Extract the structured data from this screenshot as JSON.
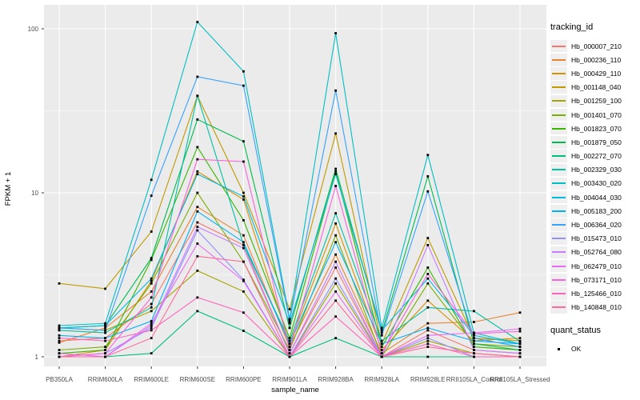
{
  "chart_data": {
    "type": "line",
    "title": "",
    "xlabel": "sample_name",
    "ylabel": "FPKM + 1",
    "y_scale": "log10",
    "ylim": [
      0.85,
      140
    ],
    "yticks": [
      {
        "value": 1,
        "label": "1"
      },
      {
        "value": 10,
        "label": "10"
      },
      {
        "value": 100,
        "label": "100"
      }
    ],
    "grid": "on",
    "panel_color": "#EBEBEB",
    "grid_color": "#FFFFFF",
    "point_color": "#000000",
    "point_shape": "square",
    "legend_position": "right",
    "categories": [
      "PB350LA",
      "RRIM600LA",
      "RRIM600LE",
      "RRIM600SE",
      "RRIM600PE",
      "RRIM901LA",
      "RRIM928BA",
      "RRIM928LA",
      "RRIM928LE",
      "RRII105LA_Control",
      "RRII105LA_Stressed"
    ],
    "series": [
      {
        "name": "Hb_000007_210",
        "color": "#F8766D",
        "values": [
          1.25,
          1.3,
          2.1,
          6.6,
          4.8,
          1.05,
          3.5,
          1.0,
          1.45,
          1.1,
          1.05
        ]
      },
      {
        "name": "Hb_000236_110",
        "color": "#EA8331",
        "values": [
          1.22,
          1.5,
          2.5,
          8.2,
          5.5,
          1.15,
          4.2,
          1.05,
          1.6,
          1.63,
          1.86
        ]
      },
      {
        "name": "Hb_000429_110",
        "color": "#D89000",
        "values": [
          1.0,
          1.1,
          2.9,
          13.5,
          9.1,
          1.2,
          6.5,
          1.1,
          2.2,
          1.25,
          1.3
        ]
      },
      {
        "name": "Hb_001148_040",
        "color": "#C09B00",
        "values": [
          2.8,
          2.6,
          5.8,
          39,
          10,
          1.95,
          23,
          1.2,
          5.3,
          1.3,
          1.25
        ]
      },
      {
        "name": "Hb_001259_100",
        "color": "#A3A500",
        "values": [
          1.5,
          1.45,
          1.9,
          3.35,
          2.5,
          1.0,
          2.8,
          1.0,
          1.25,
          1.05,
          1.0
        ]
      },
      {
        "name": "Hb_001401_070",
        "color": "#7CAE00",
        "values": [
          1.1,
          1.15,
          2.8,
          10,
          3.8,
          1.1,
          5.5,
          1.0,
          2.8,
          1.2,
          1.15
        ]
      },
      {
        "name": "Hb_001823_070",
        "color": "#39B600",
        "values": [
          1.05,
          1.1,
          3.9,
          19,
          6.8,
          1.3,
          13.5,
          1.15,
          3.5,
          1.15,
          1.1
        ]
      },
      {
        "name": "Hb_001879_050",
        "color": "#00BB4E",
        "values": [
          1.5,
          1.55,
          4.0,
          28,
          20.6,
          1.5,
          14,
          1.4,
          12.6,
          1.2,
          1.1
        ]
      },
      {
        "name": "Hb_002272_070",
        "color": "#00BF7D",
        "values": [
          1.0,
          1.0,
          1.05,
          1.9,
          1.44,
          1.0,
          1.3,
          1.0,
          1.0,
          1.0,
          1.0
        ]
      },
      {
        "name": "Hb_002329_030",
        "color": "#00C1A3",
        "values": [
          1.45,
          1.4,
          2.0,
          39,
          4.8,
          1.25,
          7.5,
          1.25,
          2.0,
          1.9,
          1.24
        ]
      },
      {
        "name": "Hb_003430_020",
        "color": "#00BFC4",
        "values": [
          1.55,
          1.6,
          12,
          110,
          55,
          1.7,
          94,
          1.5,
          17,
          1.4,
          1.2
        ]
      },
      {
        "name": "Hb_004044_030",
        "color": "#00BAE0",
        "values": [
          1.5,
          1.55,
          3.0,
          13,
          9.5,
          1.6,
          13,
          1.45,
          3.0,
          1.35,
          1.2
        ]
      },
      {
        "name": "Hb_005183_200",
        "color": "#00B0F6",
        "values": [
          1.35,
          1.3,
          1.65,
          7.7,
          5.0,
          1.2,
          5.0,
          1.2,
          1.5,
          1.25,
          1.2
        ]
      },
      {
        "name": "Hb_006364_020",
        "color": "#35A2FF",
        "values": [
          1.5,
          1.45,
          9.6,
          51,
          45,
          1.65,
          42,
          1.35,
          10.2,
          1.3,
          1.15
        ]
      },
      {
        "name": "Hb_015473_010",
        "color": "#9590FF",
        "values": [
          1.0,
          1.05,
          1.5,
          5.9,
          2.95,
          1.0,
          3.0,
          1.0,
          1.3,
          1.0,
          1.0
        ]
      },
      {
        "name": "Hb_052764_080",
        "color": "#C77CFF",
        "values": [
          1.0,
          1.0,
          1.55,
          6.2,
          4.6,
          1.05,
          3.8,
          1.0,
          4.8,
          1.1,
          1.05
        ]
      },
      {
        "name": "Hb_062479_010",
        "color": "#E76BF3",
        "values": [
          1.05,
          1.0,
          1.6,
          4.9,
          2.9,
          1.0,
          2.5,
          1.0,
          1.35,
          1.4,
          1.48
        ]
      },
      {
        "name": "Hb_073171_010",
        "color": "#FA62DB",
        "values": [
          1.0,
          1.05,
          2.3,
          16,
          15.5,
          1.1,
          11,
          1.05,
          3.2,
          1.38,
          1.43
        ]
      },
      {
        "name": "Hb_125466_010",
        "color": "#FF62BC",
        "values": [
          1.3,
          1.25,
          1.45,
          2.3,
          1.86,
          1.0,
          1.76,
          1.0,
          1.2,
          1.0,
          1.0
        ]
      },
      {
        "name": "Hb_140848_010",
        "color": "#FF6A98",
        "values": [
          1.0,
          1.0,
          1.3,
          4.1,
          3.8,
          1.0,
          2.2,
          1.0,
          1.15,
          1.05,
          1.0
        ]
      }
    ],
    "legend_tracking": {
      "title": "tracking_id"
    },
    "legend_quant": {
      "title": "quant_status",
      "items": [
        {
          "label": "OK",
          "marker_color": "#000000"
        }
      ]
    }
  }
}
